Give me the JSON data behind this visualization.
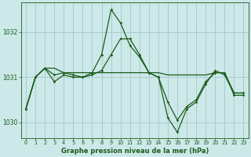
{
  "background_color": "#cce8e8",
  "grid_color": "#aacccc",
  "line_color": "#1a5c1a",
  "title": "Graphe pression niveau de la mer (hPa)",
  "ylim": [
    1029.65,
    1032.65
  ],
  "yticks": [
    1030,
    1031,
    1032
  ],
  "xlim": [
    -0.5,
    23.5
  ],
  "xticks": [
    0,
    1,
    2,
    3,
    4,
    5,
    6,
    7,
    8,
    9,
    10,
    11,
    12,
    13,
    14,
    15,
    16,
    17,
    18,
    19,
    20,
    21,
    22,
    23
  ],
  "series1_y": [
    1030.3,
    1031.0,
    1031.2,
    1031.2,
    1031.1,
    1031.1,
    1031.1,
    1031.1,
    1031.1,
    1031.1,
    1031.1,
    1031.1,
    1031.1,
    1031.1,
    1031.1,
    1031.05,
    1031.05,
    1031.05,
    1031.05,
    1031.05,
    1031.1,
    1031.1,
    1030.65,
    1030.65
  ],
  "series2_y": [
    1030.3,
    1031.0,
    1031.2,
    1030.9,
    1031.05,
    1031.0,
    1031.0,
    1031.1,
    1031.5,
    1032.5,
    1032.2,
    1031.7,
    1031.45,
    1031.1,
    1031.0,
    1030.45,
    1030.05,
    1030.35,
    1030.5,
    1030.9,
    1031.1,
    1031.1,
    1030.6,
    1030.6
  ],
  "series3_y": [
    1030.3,
    1031.0,
    1031.2,
    1031.05,
    1031.1,
    1031.05,
    1031.0,
    1031.05,
    1031.15,
    1031.5,
    1031.85,
    1031.85,
    1031.5,
    1031.1,
    1031.0,
    1030.1,
    1029.78,
    1030.3,
    1030.45,
    1030.85,
    1031.15,
    1031.05,
    1030.65,
    1030.65
  ]
}
